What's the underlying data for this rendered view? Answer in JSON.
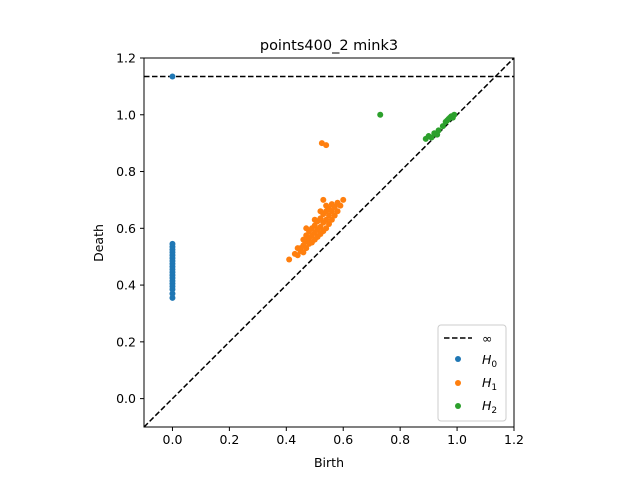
{
  "chart_data": {
    "type": "scatter",
    "title": "points400_2 mink3",
    "xlabel": "Birth",
    "ylabel": "Death",
    "xlim": [
      -0.1,
      1.2
    ],
    "ylim": [
      -0.1,
      1.2
    ],
    "xticks": [
      "0.0",
      "0.2",
      "0.4",
      "0.6",
      "0.8",
      "1.0",
      "1.2"
    ],
    "yticks": [
      "0.0",
      "0.2",
      "0.4",
      "0.6",
      "0.8",
      "1.0",
      "1.2"
    ],
    "grid": false,
    "legend_position": "bottom-right",
    "diagonal": true,
    "infinity_line": {
      "y": 1.135,
      "label": "∞"
    },
    "series": [
      {
        "name": "H",
        "subscript": "0",
        "color": "#1f77b4",
        "points": [
          [
            0,
            1.135
          ],
          [
            0,
            0.355
          ],
          [
            0,
            0.37
          ],
          [
            0,
            0.385
          ],
          [
            0,
            0.395
          ],
          [
            0,
            0.405
          ],
          [
            0,
            0.415
          ],
          [
            0,
            0.425
          ],
          [
            0,
            0.435
          ],
          [
            0,
            0.445
          ],
          [
            0,
            0.455
          ],
          [
            0,
            0.465
          ],
          [
            0,
            0.475
          ],
          [
            0,
            0.485
          ],
          [
            0,
            0.495
          ],
          [
            0,
            0.505
          ],
          [
            0,
            0.515
          ],
          [
            0,
            0.525
          ],
          [
            0,
            0.535
          ],
          [
            0,
            0.545
          ]
        ]
      },
      {
        "name": "H",
        "subscript": "1",
        "color": "#ff7f0e",
        "points": [
          [
            0.41,
            0.49
          ],
          [
            0.43,
            0.51
          ],
          [
            0.44,
            0.505
          ],
          [
            0.45,
            0.52
          ],
          [
            0.45,
            0.53
          ],
          [
            0.46,
            0.515
          ],
          [
            0.46,
            0.54
          ],
          [
            0.47,
            0.53
          ],
          [
            0.47,
            0.555
          ],
          [
            0.47,
            0.575
          ],
          [
            0.48,
            0.545
          ],
          [
            0.48,
            0.565
          ],
          [
            0.48,
            0.59
          ],
          [
            0.49,
            0.55
          ],
          [
            0.49,
            0.575
          ],
          [
            0.49,
            0.6
          ],
          [
            0.5,
            0.56
          ],
          [
            0.5,
            0.585
          ],
          [
            0.5,
            0.61
          ],
          [
            0.51,
            0.57
          ],
          [
            0.51,
            0.595
          ],
          [
            0.51,
            0.625
          ],
          [
            0.52,
            0.58
          ],
          [
            0.52,
            0.605
          ],
          [
            0.52,
            0.635
          ],
          [
            0.53,
            0.59
          ],
          [
            0.53,
            0.62
          ],
          [
            0.53,
            0.65
          ],
          [
            0.54,
            0.6
          ],
          [
            0.54,
            0.63
          ],
          [
            0.54,
            0.66
          ],
          [
            0.55,
            0.615
          ],
          [
            0.55,
            0.645
          ],
          [
            0.55,
            0.67
          ],
          [
            0.56,
            0.63
          ],
          [
            0.56,
            0.66
          ],
          [
            0.56,
            0.685
          ],
          [
            0.57,
            0.645
          ],
          [
            0.57,
            0.675
          ],
          [
            0.58,
            0.66
          ],
          [
            0.58,
            0.69
          ],
          [
            0.59,
            0.68
          ],
          [
            0.6,
            0.7
          ],
          [
            0.47,
            0.6
          ],
          [
            0.5,
            0.63
          ],
          [
            0.52,
            0.66
          ],
          [
            0.54,
            0.68
          ],
          [
            0.53,
            0.7
          ],
          [
            0.44,
            0.53
          ],
          [
            0.46,
            0.56
          ],
          [
            0.525,
            0.9
          ],
          [
            0.54,
            0.893
          ]
        ]
      },
      {
        "name": "H",
        "subscript": "2",
        "color": "#2ca02c",
        "points": [
          [
            0.73,
            1.0
          ],
          [
            0.89,
            0.915
          ],
          [
            0.9,
            0.925
          ],
          [
            0.91,
            0.92
          ],
          [
            0.92,
            0.935
          ],
          [
            0.93,
            0.93
          ],
          [
            0.935,
            0.945
          ],
          [
            0.95,
            0.96
          ],
          [
            0.96,
            0.975
          ],
          [
            0.97,
            0.985
          ],
          [
            0.975,
            0.99
          ],
          [
            0.98,
            0.995
          ],
          [
            0.99,
            1.0
          ],
          [
            0.965,
            0.98
          ],
          [
            0.985,
            0.99
          ]
        ]
      }
    ]
  }
}
